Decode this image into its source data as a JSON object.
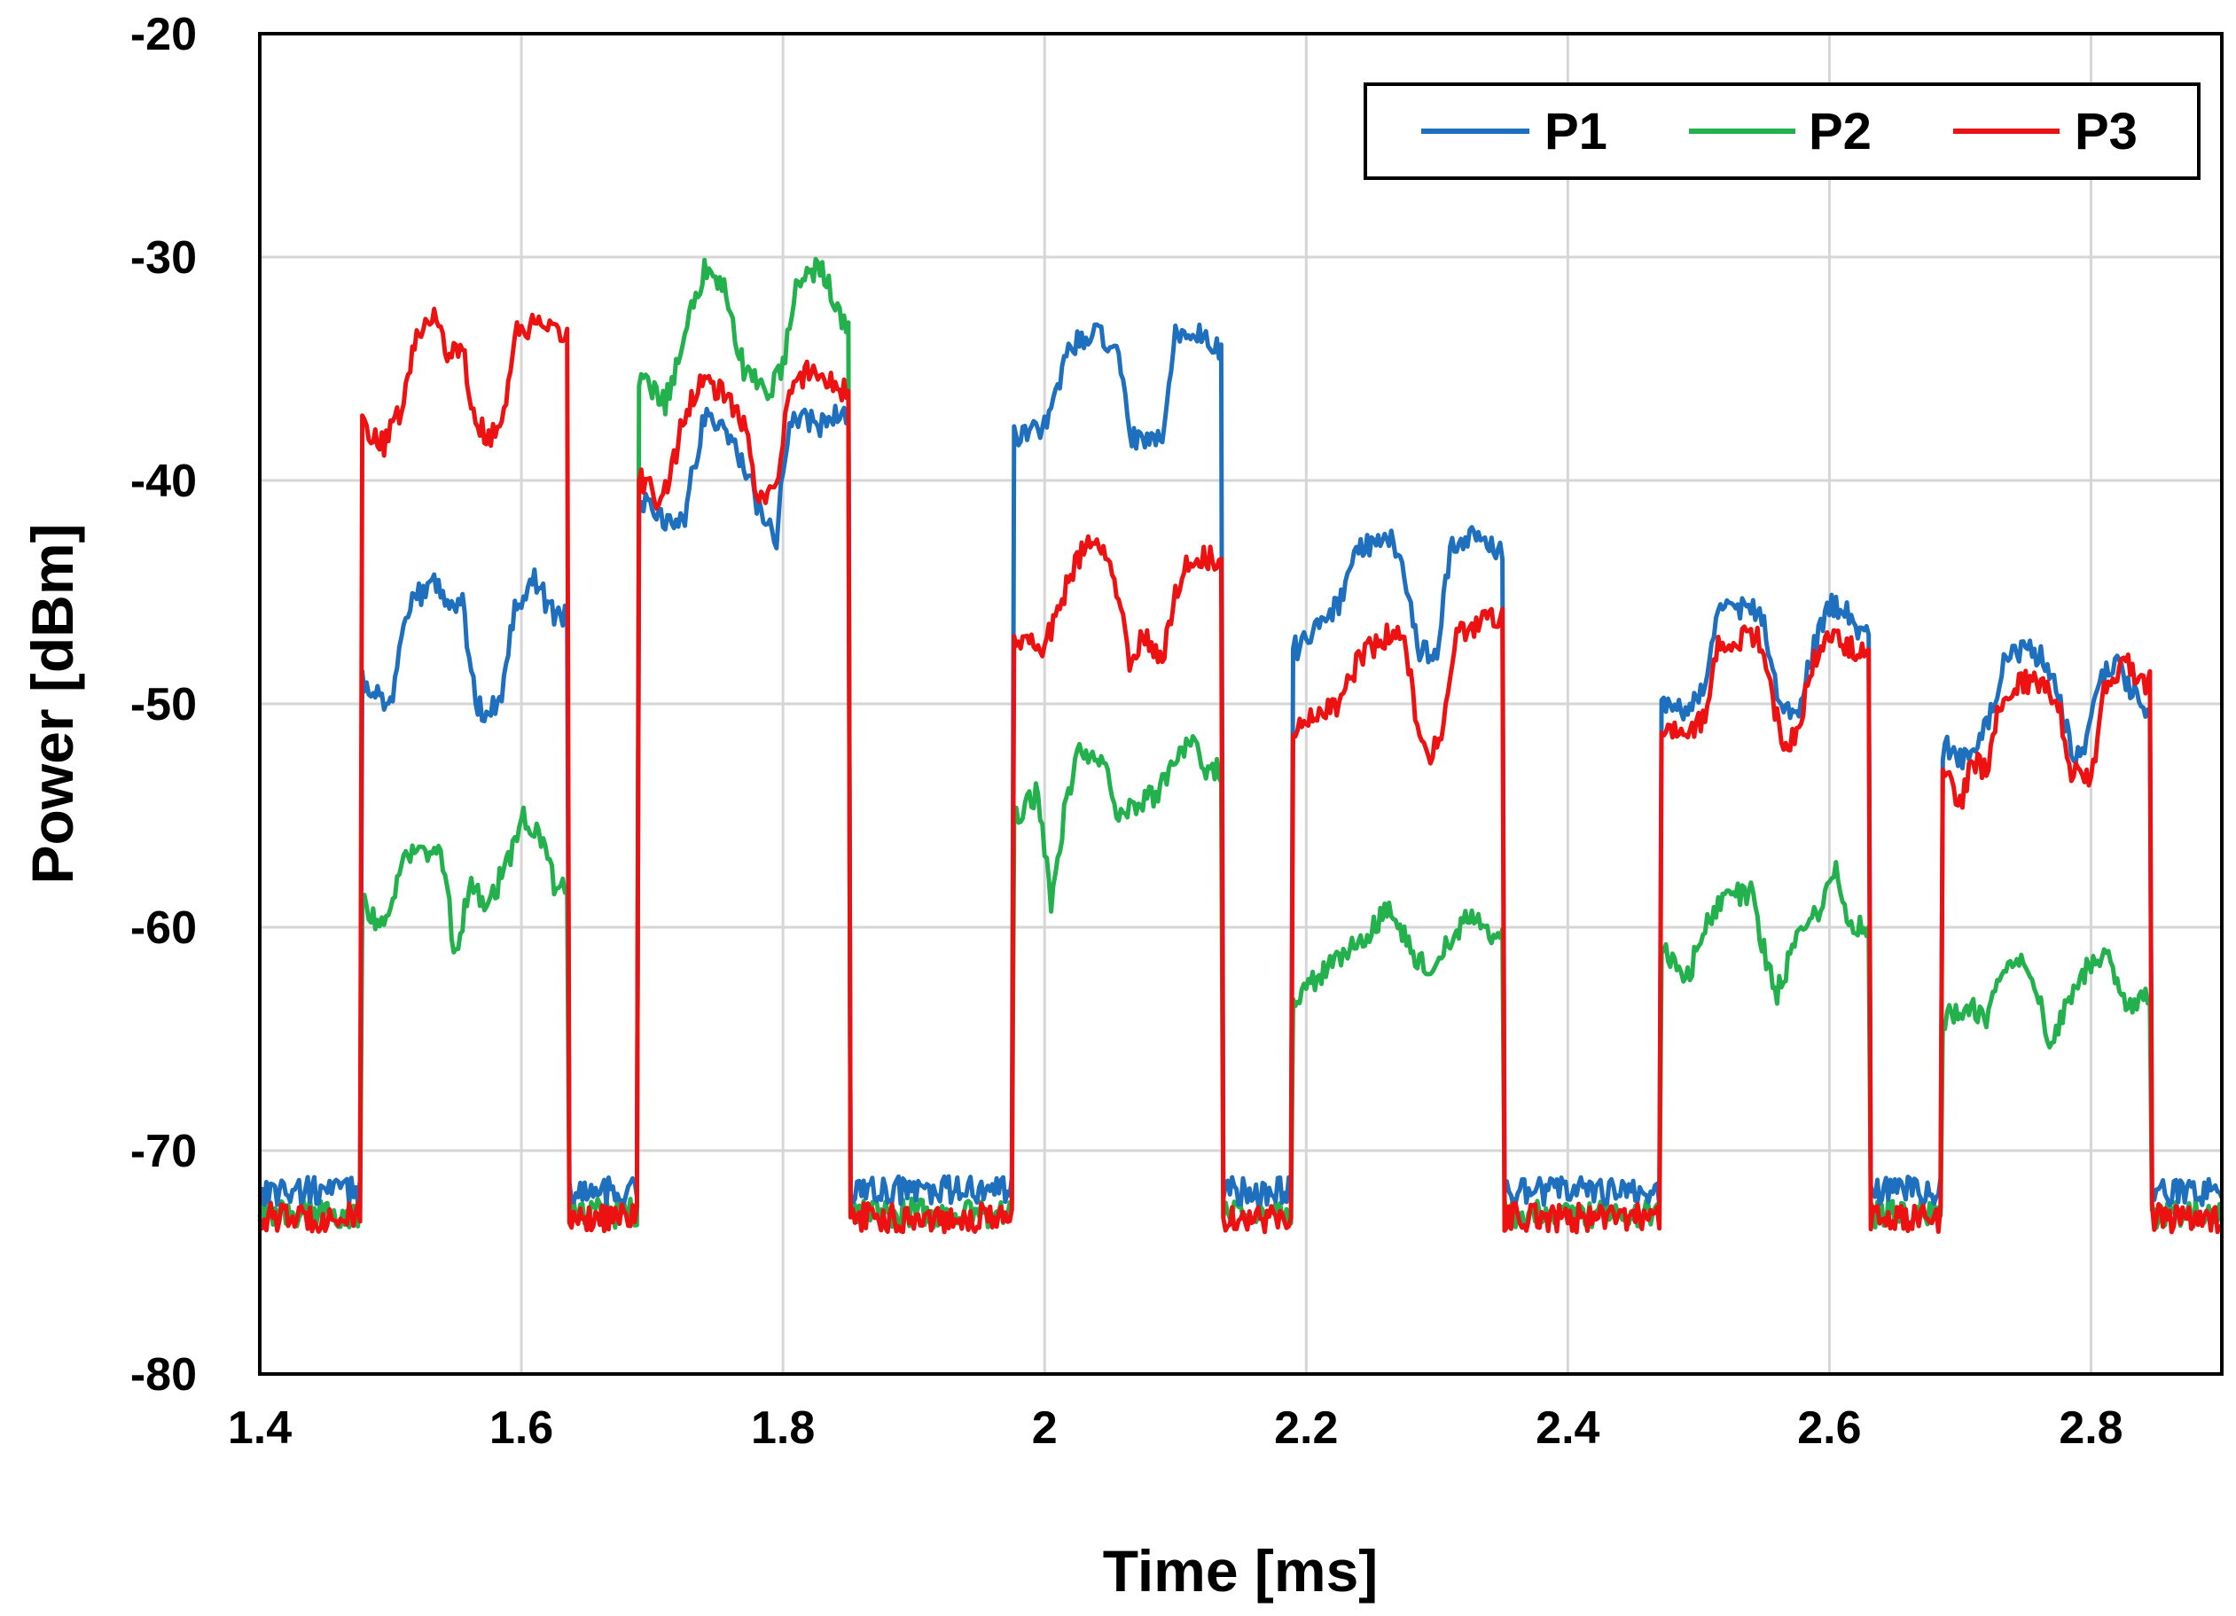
{
  "chart_data": {
    "type": "line",
    "title": "",
    "xlabel": "Time [ms]",
    "ylabel": "Power [dBm]",
    "xlim": [
      1.4,
      2.9
    ],
    "ylim": [
      -80,
      -20
    ],
    "xticks": [
      1.4,
      1.6,
      1.8,
      2.0,
      2.2,
      2.4,
      2.6,
      2.8
    ],
    "xtick_labels": [
      "1.4",
      "1.6",
      "1.8",
      "2",
      "2.2",
      "2.4",
      "2.6",
      "2.8"
    ],
    "yticks": [
      -80,
      -70,
      -60,
      -50,
      -40,
      -30,
      -20
    ],
    "ytick_labels": [
      "-80",
      "-70",
      "-60",
      "-50",
      "-40",
      "-30",
      "-20"
    ],
    "grid": true,
    "legend_position": "top-right",
    "baseline": {
      "P1": -71.8,
      "P2": -72.8,
      "P3": -73.0
    },
    "series": [
      {
        "name": "P1",
        "color": "#1f6fbf",
        "bursts": [
          {
            "start": 1.477,
            "end": 1.635,
            "levels": [
              [
                1.48,
                -49
              ],
              [
                1.5,
                -50
              ],
              [
                1.515,
                -45.5
              ],
              [
                1.535,
                -44.5
              ],
              [
                1.545,
                -45.5
              ],
              [
                1.555,
                -45.5
              ],
              [
                1.565,
                -50
              ],
              [
                1.575,
                -50.5
              ],
              [
                1.585,
                -49.5
              ],
              [
                1.595,
                -45.5
              ],
              [
                1.61,
                -44.5
              ],
              [
                1.625,
                -46
              ]
            ]
          },
          {
            "start": 1.69,
            "end": 1.85,
            "levels": [
              [
                1.695,
                -41
              ],
              [
                1.71,
                -42
              ],
              [
                1.725,
                -41.5
              ],
              [
                1.74,
                -37
              ],
              [
                1.76,
                -38
              ],
              [
                1.775,
                -40
              ],
              [
                1.785,
                -42
              ],
              [
                1.795,
                -42.5
              ],
              [
                1.805,
                -37
              ],
              [
                1.83,
                -37.5
              ],
              [
                1.845,
                -37
              ]
            ]
          },
          {
            "start": 1.975,
            "end": 2.135,
            "levels": [
              [
                1.98,
                -38
              ],
              [
                2.0,
                -37.5
              ],
              [
                2.02,
                -34
              ],
              [
                2.04,
                -33.5
              ],
              [
                2.055,
                -34
              ],
              [
                2.065,
                -38
              ],
              [
                2.08,
                -38.5
              ],
              [
                2.09,
                -38
              ],
              [
                2.1,
                -33.5
              ],
              [
                2.12,
                -33.5
              ],
              [
                2.13,
                -34
              ]
            ]
          },
          {
            "start": 2.19,
            "end": 2.35,
            "levels": [
              [
                2.195,
                -47.5
              ],
              [
                2.21,
                -46.5
              ],
              [
                2.225,
                -45.5
              ],
              [
                2.24,
                -43
              ],
              [
                2.265,
                -42.5
              ],
              [
                2.275,
                -44
              ],
              [
                2.285,
                -47.5
              ],
              [
                2.3,
                -48
              ],
              [
                2.31,
                -43
              ],
              [
                2.33,
                -42.5
              ],
              [
                2.345,
                -43
              ]
            ]
          },
          {
            "start": 2.47,
            "end": 2.63,
            "levels": [
              [
                2.475,
                -50
              ],
              [
                2.49,
                -50.5
              ],
              [
                2.505,
                -49
              ],
              [
                2.515,
                -46
              ],
              [
                2.54,
                -45.5
              ],
              [
                2.55,
                -46.5
              ],
              [
                2.56,
                -49.5
              ],
              [
                2.575,
                -50.5
              ],
              [
                2.585,
                -48
              ],
              [
                2.6,
                -45.5
              ],
              [
                2.615,
                -46
              ],
              [
                2.625,
                -47
              ]
            ]
          },
          {
            "start": 2.685,
            "end": 2.845,
            "levels": [
              [
                2.69,
                -52
              ],
              [
                2.705,
                -52.5
              ],
              [
                2.72,
                -51
              ],
              [
                2.735,
                -48
              ],
              [
                2.75,
                -47.5
              ],
              [
                2.765,
                -48
              ],
              [
                2.775,
                -49.5
              ],
              [
                2.785,
                -52
              ],
              [
                2.795,
                -52.5
              ],
              [
                2.805,
                -49
              ],
              [
                2.82,
                -48
              ],
              [
                2.84,
                -50.5
              ]
            ]
          }
        ]
      },
      {
        "name": "P2",
        "color": "#22b14c",
        "bursts": [
          {
            "start": 1.477,
            "end": 1.635,
            "levels": [
              [
                1.48,
                -59
              ],
              [
                1.495,
                -60
              ],
              [
                1.51,
                -57
              ],
              [
                1.525,
                -56.5
              ],
              [
                1.54,
                -57
              ],
              [
                1.55,
                -61.5
              ],
              [
                1.56,
                -58
              ],
              [
                1.575,
                -59
              ],
              [
                1.59,
                -57
              ],
              [
                1.6,
                -55
              ],
              [
                1.615,
                -56
              ],
              [
                1.625,
                -58
              ]
            ]
          },
          {
            "start": 1.69,
            "end": 1.85,
            "levels": [
              [
                1.695,
                -35.5
              ],
              [
                1.71,
                -36.5
              ],
              [
                1.725,
                -33.5
              ],
              [
                1.74,
                -30.5
              ],
              [
                1.755,
                -31.5
              ],
              [
                1.77,
                -35
              ],
              [
                1.79,
                -36
              ],
              [
                1.8,
                -35
              ],
              [
                1.81,
                -31
              ],
              [
                1.83,
                -30.5
              ],
              [
                1.845,
                -33
              ]
            ]
          },
          {
            "start": 1.975,
            "end": 2.135,
            "levels": [
              [
                1.98,
                -55
              ],
              [
                1.995,
                -54
              ],
              [
                2.005,
                -59
              ],
              [
                2.015,
                -55
              ],
              [
                2.025,
                -52
              ],
              [
                2.045,
                -52.5
              ],
              [
                2.055,
                -55
              ],
              [
                2.07,
                -54.5
              ],
              [
                2.085,
                -54
              ],
              [
                2.095,
                -53
              ],
              [
                2.11,
                -51.5
              ],
              [
                2.125,
                -53
              ]
            ]
          },
          {
            "start": 2.19,
            "end": 2.35,
            "levels": [
              [
                2.195,
                -63
              ],
              [
                2.215,
                -62
              ],
              [
                2.235,
                -61
              ],
              [
                2.25,
                -60
              ],
              [
                2.265,
                -59
              ],
              [
                2.28,
                -61
              ],
              [
                2.295,
                -62
              ],
              [
                2.31,
                -60.5
              ],
              [
                2.325,
                -59.5
              ],
              [
                2.34,
                -60.5
              ]
            ]
          },
          {
            "start": 2.47,
            "end": 2.63,
            "levels": [
              [
                2.475,
                -61
              ],
              [
                2.49,
                -62.5
              ],
              [
                2.505,
                -60
              ],
              [
                2.52,
                -58.5
              ],
              [
                2.54,
                -58.5
              ],
              [
                2.55,
                -61
              ],
              [
                2.56,
                -63
              ],
              [
                2.575,
                -60.5
              ],
              [
                2.59,
                -59.5
              ],
              [
                2.605,
                -57.5
              ],
              [
                2.615,
                -60
              ]
            ]
          },
          {
            "start": 2.685,
            "end": 2.845,
            "levels": [
              [
                2.69,
                -64
              ],
              [
                2.705,
                -63.5
              ],
              [
                2.72,
                -64
              ],
              [
                2.735,
                -62
              ],
              [
                2.75,
                -61.5
              ],
              [
                2.76,
                -63
              ],
              [
                2.77,
                -65.5
              ],
              [
                2.78,
                -63.5
              ],
              [
                2.795,
                -62
              ],
              [
                2.81,
                -61
              ],
              [
                2.825,
                -63.5
              ],
              [
                2.84,
                -63
              ]
            ]
          }
        ]
      },
      {
        "name": "P3",
        "color": "#ee1111",
        "bursts": [
          {
            "start": 1.477,
            "end": 1.635,
            "levels": [
              [
                1.48,
                -37.5
              ],
              [
                1.495,
                -38.5
              ],
              [
                1.51,
                -36.5
              ],
              [
                1.52,
                -33.5
              ],
              [
                1.535,
                -32.5
              ],
              [
                1.545,
                -34.5
              ],
              [
                1.555,
                -34
              ],
              [
                1.565,
                -37.5
              ],
              [
                1.575,
                -38
              ],
              [
                1.585,
                -37.5
              ],
              [
                1.595,
                -33.5
              ],
              [
                1.61,
                -33
              ],
              [
                1.625,
                -33.5
              ]
            ]
          },
          {
            "start": 1.69,
            "end": 1.85,
            "levels": [
              [
                1.695,
                -40
              ],
              [
                1.705,
                -41
              ],
              [
                1.715,
                -39.5
              ],
              [
                1.725,
                -37
              ],
              [
                1.74,
                -35.5
              ],
              [
                1.76,
                -36.5
              ],
              [
                1.77,
                -37.5
              ],
              [
                1.78,
                -40.5
              ],
              [
                1.795,
                -40.5
              ],
              [
                1.805,
                -36
              ],
              [
                1.82,
                -35
              ],
              [
                1.835,
                -35.5
              ],
              [
                1.845,
                -36
              ]
            ]
          },
          {
            "start": 1.975,
            "end": 2.135,
            "levels": [
              [
                1.98,
                -47
              ],
              [
                2.0,
                -47.5
              ],
              [
                2.015,
                -45
              ],
              [
                2.03,
                -43
              ],
              [
                2.045,
                -43
              ],
              [
                2.055,
                -45
              ],
              [
                2.065,
                -48
              ],
              [
                2.075,
                -47
              ],
              [
                2.09,
                -48
              ],
              [
                2.1,
                -45
              ],
              [
                2.11,
                -43.5
              ],
              [
                2.13,
                -43.5
              ]
            ]
          },
          {
            "start": 2.19,
            "end": 2.35,
            "levels": [
              [
                2.195,
                -51
              ],
              [
                2.21,
                -50.5
              ],
              [
                2.225,
                -50
              ],
              [
                2.24,
                -48
              ],
              [
                2.26,
                -47
              ],
              [
                2.275,
                -47
              ],
              [
                2.285,
                -51
              ],
              [
                2.295,
                -52.5
              ],
              [
                2.305,
                -51
              ],
              [
                2.315,
                -47
              ],
              [
                2.33,
                -46.5
              ],
              [
                2.345,
                -46
              ]
            ]
          },
          {
            "start": 2.47,
            "end": 2.63,
            "levels": [
              [
                2.475,
                -51
              ],
              [
                2.49,
                -51.5
              ],
              [
                2.505,
                -50.5
              ],
              [
                2.515,
                -47.5
              ],
              [
                2.535,
                -47
              ],
              [
                2.545,
                -47
              ],
              [
                2.555,
                -49.5
              ],
              [
                2.565,
                -52
              ],
              [
                2.575,
                -51.5
              ],
              [
                2.585,
                -48.5
              ],
              [
                2.6,
                -47
              ],
              [
                2.62,
                -47.5
              ]
            ]
          },
          {
            "start": 2.685,
            "end": 2.845,
            "levels": [
              [
                2.69,
                -53
              ],
              [
                2.7,
                -54.5
              ],
              [
                2.71,
                -52.5
              ],
              [
                2.72,
                -53
              ],
              [
                2.73,
                -50
              ],
              [
                2.745,
                -49
              ],
              [
                2.765,
                -49
              ],
              [
                2.775,
                -50
              ],
              [
                2.785,
                -53
              ],
              [
                2.8,
                -53.5
              ],
              [
                2.81,
                -49.5
              ],
              [
                2.825,
                -48
              ],
              [
                2.84,
                -49
              ]
            ]
          }
        ]
      }
    ]
  }
}
